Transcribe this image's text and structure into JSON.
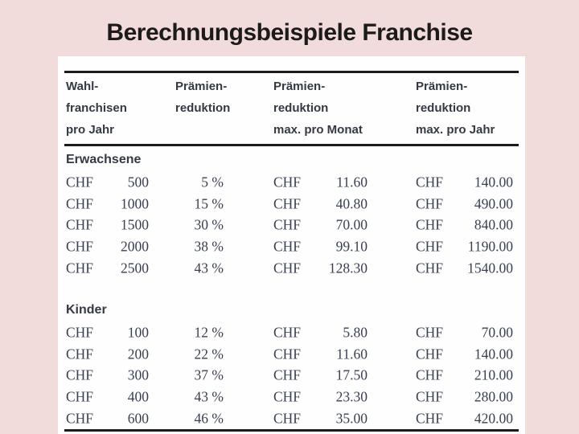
{
  "slide": {
    "title": "Berechnungsbeispiele Franchise"
  },
  "table": {
    "headers": [
      {
        "label": "Wahl-\nfranchisen\npro Jahr"
      },
      {
        "label": "Prämien-\nreduktion"
      },
      {
        "label": "Prämien-\nreduktion\nmax. pro Monat"
      },
      {
        "label": "Prämien-\nreduktion\nmax. pro Jahr"
      }
    ],
    "sections": [
      {
        "label": "Erwachsene",
        "rows": [
          {
            "currency": "CHF",
            "franchise": "500",
            "reduction": "5 %",
            "monthly_currency": "CHF",
            "monthly": "11.60",
            "yearly_currency": "CHF",
            "yearly": "140.00"
          },
          {
            "currency": "CHF",
            "franchise": "1000",
            "reduction": "15 %",
            "monthly_currency": "CHF",
            "monthly": "40.80",
            "yearly_currency": "CHF",
            "yearly": "490.00"
          },
          {
            "currency": "CHF",
            "franchise": "1500",
            "reduction": "30 %",
            "monthly_currency": "CHF",
            "monthly": "70.00",
            "yearly_currency": "CHF",
            "yearly": "840.00"
          },
          {
            "currency": "CHF",
            "franchise": "2000",
            "reduction": "38 %",
            "monthly_currency": "CHF",
            "monthly": "99.10",
            "yearly_currency": "CHF",
            "yearly": "1190.00"
          },
          {
            "currency": "CHF",
            "franchise": "2500",
            "reduction": "43 %",
            "monthly_currency": "CHF",
            "monthly": "128.30",
            "yearly_currency": "CHF",
            "yearly": "1540.00"
          }
        ]
      },
      {
        "label": "Kinder",
        "rows": [
          {
            "currency": "CHF",
            "franchise": "100",
            "reduction": "12 %",
            "monthly_currency": "CHF",
            "monthly": "5.80",
            "yearly_currency": "CHF",
            "yearly": "70.00"
          },
          {
            "currency": "CHF",
            "franchise": "200",
            "reduction": "22 %",
            "monthly_currency": "CHF",
            "monthly": "11.60",
            "yearly_currency": "CHF",
            "yearly": "140.00"
          },
          {
            "currency": "CHF",
            "franchise": "300",
            "reduction": "37 %",
            "monthly_currency": "CHF",
            "monthly": "17.50",
            "yearly_currency": "CHF",
            "yearly": "210.00"
          },
          {
            "currency": "CHF",
            "franchise": "400",
            "reduction": "43 %",
            "monthly_currency": "CHF",
            "monthly": "23.30",
            "yearly_currency": "CHF",
            "yearly": "280.00"
          },
          {
            "currency": "CHF",
            "franchise": "600",
            "reduction": "46 %",
            "monthly_currency": "CHF",
            "monthly": "35.00",
            "yearly_currency": "CHF",
            "yearly": "420.00"
          }
        ]
      }
    ]
  },
  "colors": {
    "background": "#f1dcdb",
    "panel": "#fefefe",
    "title_text": "#1d1a1a",
    "header_text": "#343943",
    "data_text": "#394053",
    "rule": "#1c1c1c"
  }
}
